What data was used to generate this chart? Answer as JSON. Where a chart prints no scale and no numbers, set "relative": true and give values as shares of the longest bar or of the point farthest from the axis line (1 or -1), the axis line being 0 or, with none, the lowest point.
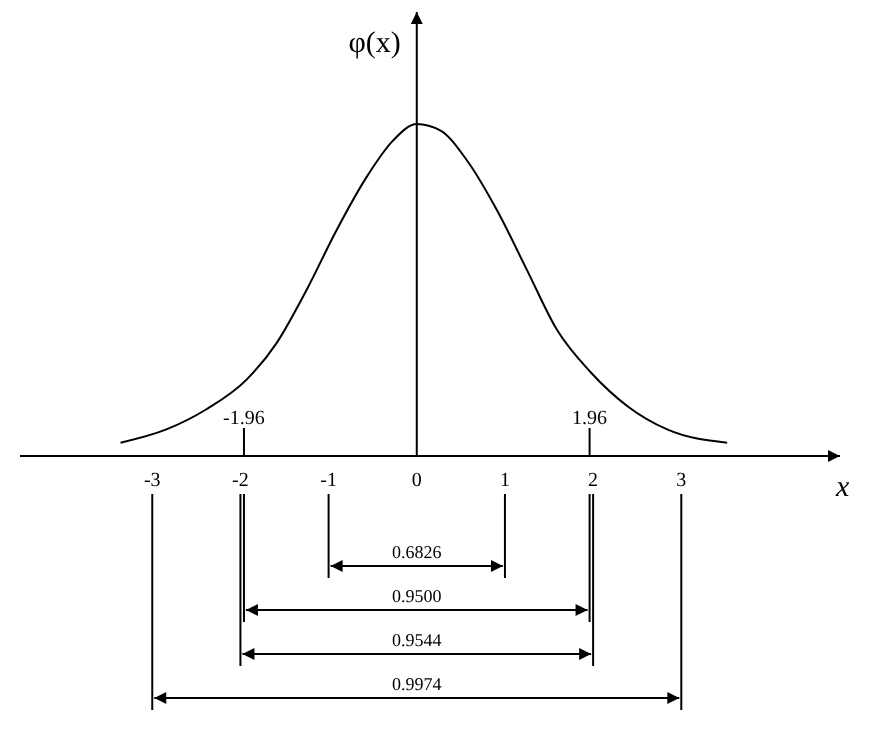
{
  "chart_data": {
    "type": "line",
    "relative": true,
    "xlabel": "x",
    "ylabel": "φ(x)",
    "xlim": [
      -4.5,
      4.8
    ],
    "xticks": [
      -3,
      -2,
      -1,
      0,
      1,
      2,
      3
    ],
    "x2lim": [
      -4.5,
      4.8
    ],
    "x2ticks": [
      {
        "value": -1.96,
        "label": "-1.96"
      },
      {
        "value": 1.96,
        "label": "1.96"
      }
    ],
    "series": [
      {
        "color": "#000000",
        "x": [
          -3.36,
          -2.84,
          -2.39,
          -1.93,
          -1.59,
          -1.25,
          -0.91,
          -0.57,
          -0.27,
          0,
          0.27,
          0.57,
          0.91,
          1.25,
          1.59,
          1.98,
          2.39,
          2.84,
          3.52
        ],
        "values": [
          0.04,
          0.08,
          0.14,
          0.23,
          0.34,
          0.5,
          0.68,
          0.84,
          0.95,
          1,
          0.98,
          0.89,
          0.74,
          0.56,
          0.38,
          0.25,
          0.15,
          0.08,
          0.04
        ]
      }
    ],
    "annotations": [
      "0.6826",
      "0.9500",
      "0.9544",
      "0.9974"
    ],
    "marker": "none",
    "line_style": "solid"
  }
}
